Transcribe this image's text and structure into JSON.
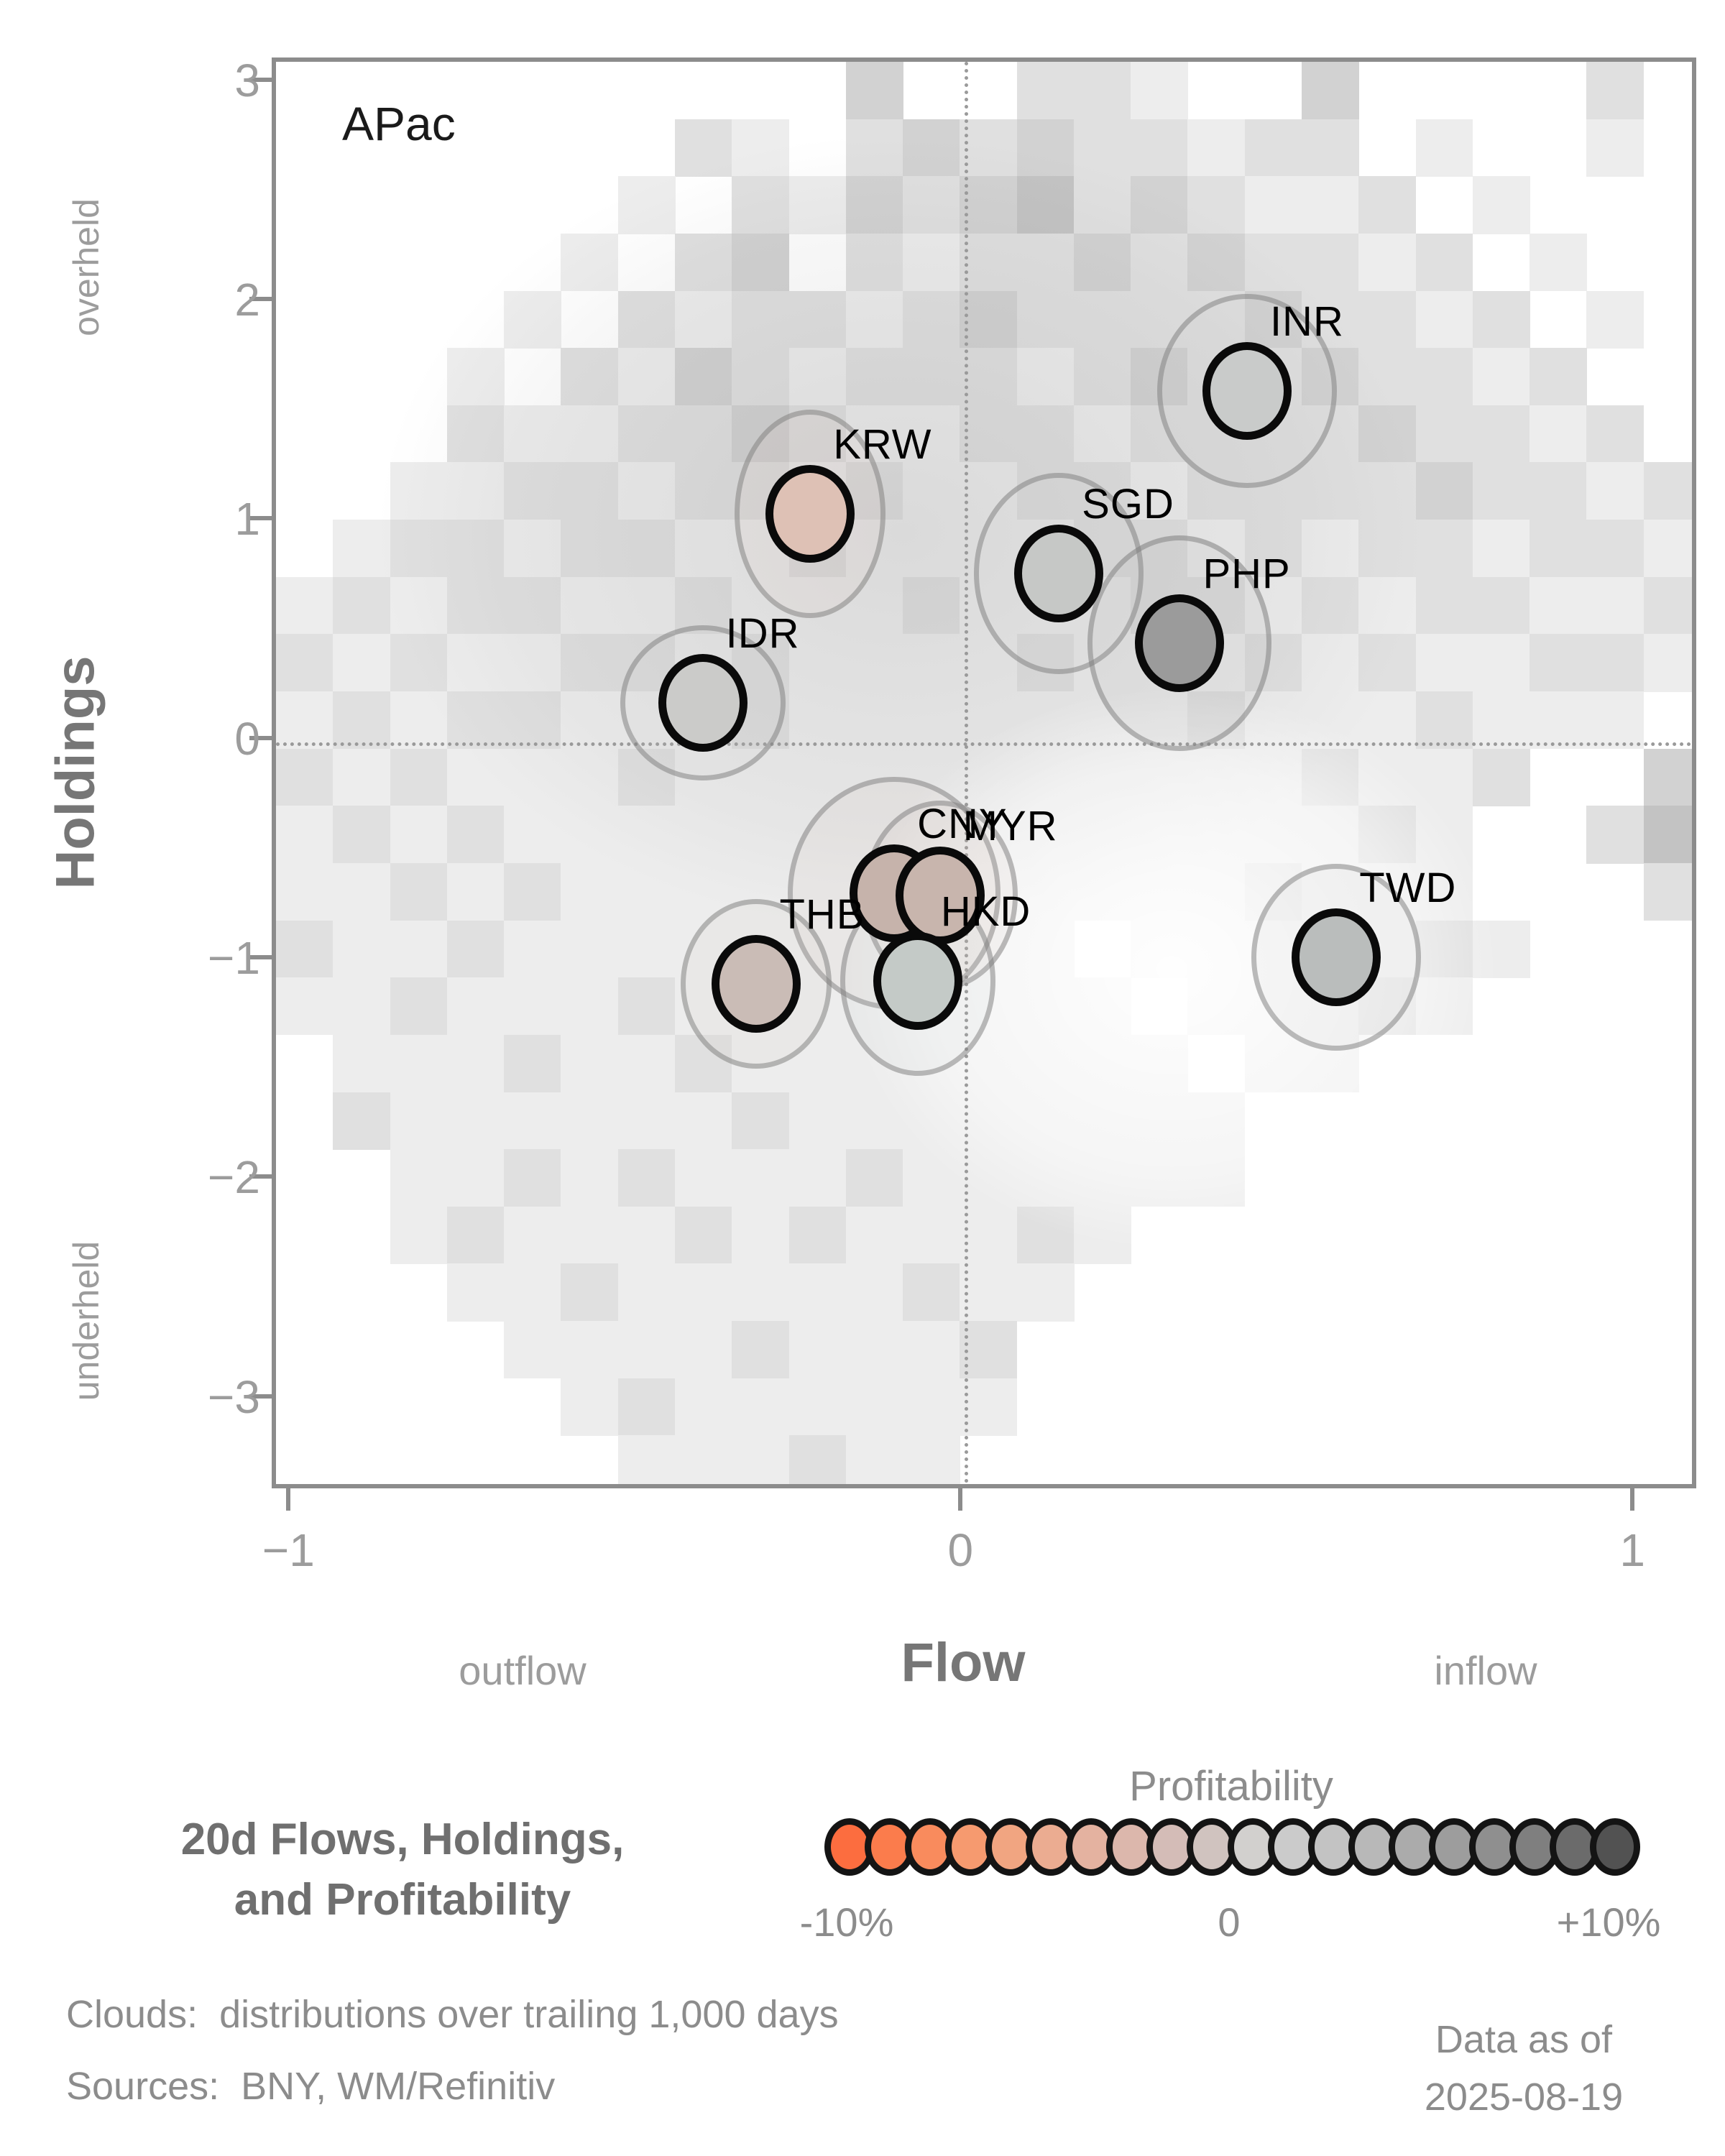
{
  "panel_title": "APac",
  "axes": {
    "x": {
      "label": "Flow",
      "left_annotation": "outflow",
      "right_annotation": "inflow",
      "ticks": [
        {
          "v": -1,
          "label": "−1"
        },
        {
          "v": 0,
          "label": "0"
        },
        {
          "v": 1,
          "label": "1"
        }
      ]
    },
    "y": {
      "label": "Holdings",
      "top_annotation": "overheld",
      "bottom_annotation": "underheld",
      "ticks": [
        {
          "v": 3,
          "label": "3"
        },
        {
          "v": 2,
          "label": "2"
        },
        {
          "v": 1,
          "label": "1"
        },
        {
          "v": 0,
          "label": "0"
        },
        {
          "v": -1,
          "label": "−1"
        },
        {
          "v": -2,
          "label": "−2"
        },
        {
          "v": -3,
          "label": "−3"
        }
      ]
    }
  },
  "chart_data": {
    "type": "scatter",
    "title": "20d Flows, Holdings, and Profitability",
    "panel": "APac",
    "xlabel": "Flow",
    "ylabel": "Holdings",
    "xlim": [
      -1.025,
      1.095
    ],
    "ylim": [
      -3.42,
      3.1
    ],
    "grid": false,
    "points": [
      {
        "label": "INR",
        "flow": 0.42,
        "holdings": 1.6,
        "profitability_est_pct": 0.0,
        "color": "#c9cbca",
        "halo_rx": 125,
        "halo_ry": 135
      },
      {
        "label": "KRW",
        "flow": -0.23,
        "holdings": 1.04,
        "profitability_est_pct": -3.0,
        "color": "#dec1b5",
        "halo_rx": 105,
        "halo_ry": 145
      },
      {
        "label": "SGD",
        "flow": 0.14,
        "holdings": 0.77,
        "profitability_est_pct": 0.0,
        "color": "#c6c8c6",
        "halo_rx": 118,
        "halo_ry": 140
      },
      {
        "label": "PHP",
        "flow": 0.32,
        "holdings": 0.45,
        "profitability_est_pct": 3.5,
        "color": "#9b9b9b",
        "halo_rx": 128,
        "halo_ry": 150
      },
      {
        "label": "IDR",
        "flow": -0.39,
        "holdings": 0.18,
        "profitability_est_pct": 0.0,
        "color": "#cbcbc9",
        "halo_rx": 115,
        "halo_ry": 108
      },
      {
        "label": "CNY",
        "flow": -0.105,
        "holdings": -0.69,
        "profitability_est_pct": -2.0,
        "color": "#c6b3ab",
        "halo_rx": 148,
        "halo_ry": 162
      },
      {
        "label": "MYR",
        "flow": -0.037,
        "holdings": -0.7,
        "profitability_est_pct": -2.0,
        "color": "#c8b5ad",
        "halo_rx": 108,
        "halo_ry": 132
      },
      {
        "label": "THB",
        "flow": -0.31,
        "holdings": -1.1,
        "profitability_est_pct": -2.0,
        "color": "#cabcb6",
        "halo_rx": 105,
        "halo_ry": 118
      },
      {
        "label": "HKD",
        "flow": -0.07,
        "holdings": -1.09,
        "profitability_est_pct": 0.5,
        "color": "#c4cac7",
        "halo_rx": 108,
        "halo_ry": 132
      },
      {
        "label": "TWD",
        "flow": 0.553,
        "holdings": -0.98,
        "profitability_est_pct": 1.0,
        "color": "#babdbc",
        "halo_rx": 118,
        "halo_ry": 130
      }
    ],
    "cloud": {
      "note": "distributions over trailing 1,000 days",
      "cols": 25,
      "rows": [
        "0000000000300221003000020",
        "0000000210232322122010010",
        "0000001021323423211201000",
        "0000010230212232322120100",
        "0000102122123222232212010",
        "0001021321222123223221200",
        "0002112232112212222322120",
        "0011221221211221222232212",
        "0122122112111122121221221",
        "1212211211121112212122112",
        "2121122121111211121211221",
        "1212211121111111211121110",
        "2121112111111111112112003",
        "1212111111111111111210024",
        "1121211111111111121110002",
        "2112111111111101112121000",
        "1121112111111110111210000",
        "0111211211111111011000000",
        "0211111121111111100000000",
        "0011212111211111100000000",
        "0012111212111210000000000",
        "0001121111121100000000000",
        "0000111121112000000000000",
        "0000012111111000000000000",
        "0000001112110000000000000"
      ],
      "palette": {
        "1": "#ededed",
        "2": "#e0e0e0",
        "3": "#d2d2d2",
        "4": "#c3c3c3"
      }
    },
    "colorbar": {
      "title": "Profitability",
      "min_label": "-10%",
      "mid_label": "0",
      "max_label": "+10%",
      "min_value_pct": -10,
      "max_value_pct": 10,
      "colors": [
        "#fc6d3f",
        "#fb7c4c",
        "#f98b5d",
        "#f69a6f",
        "#f1a581",
        "#ebac91",
        "#e4b2a0",
        "#dcb7ac",
        "#d4bcb7",
        "#d0c3bf",
        "#d2d0ce",
        "#cbcbcb",
        "#c3c3c3",
        "#b8b8b8",
        "#ababab",
        "#9d9d9d",
        "#8f8f8f",
        "#7f7f7f",
        "#6b6b6b",
        "#525252"
      ]
    }
  },
  "legend": {
    "title": "Profitability",
    "min_label": "-10%",
    "mid_label": "0",
    "max_label": "+10%"
  },
  "footer": {
    "title_line1": "20d Flows, Holdings,",
    "title_line2": "and Profitability",
    "clouds_note": "Clouds:  distributions over trailing 1,000 days",
    "sources_note": "Sources:  BNY, WM/Refinitiv",
    "data_as_of_label": "Data as of",
    "data_as_of_date": "2025-08-19"
  }
}
